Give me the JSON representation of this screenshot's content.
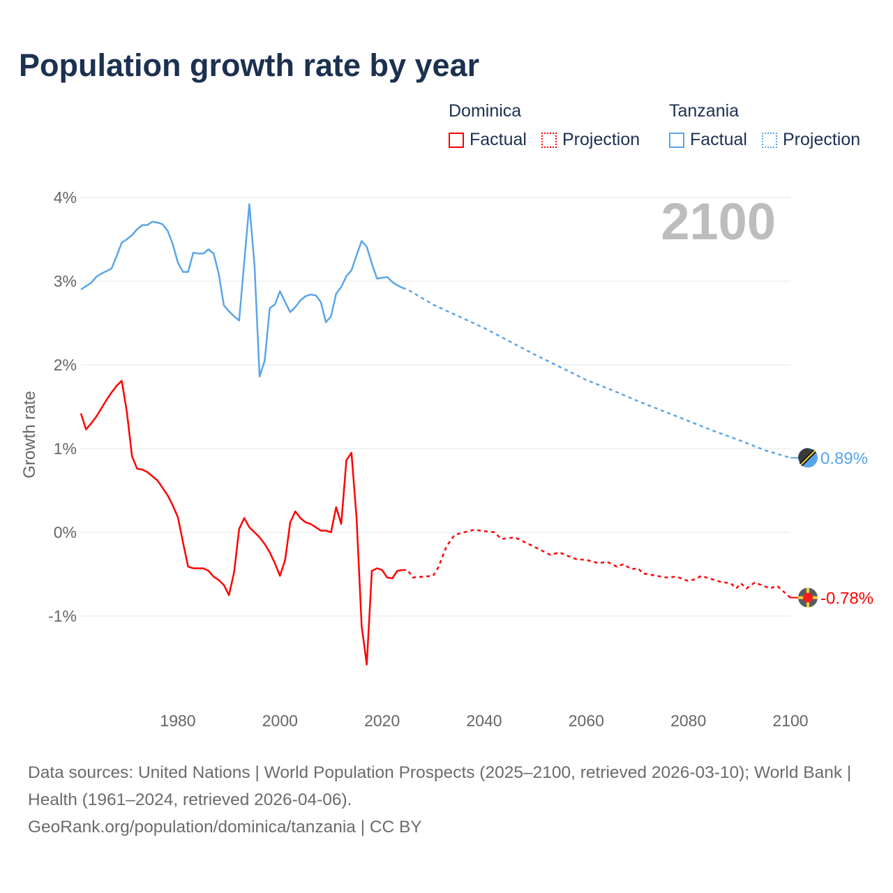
{
  "title": "Population growth rate by year",
  "legend": {
    "groups": [
      {
        "name": "Dominica",
        "color": "#ff0000",
        "factual": "Factual",
        "projection": "Projection"
      },
      {
        "name": "Tanzania",
        "color": "#5aa5ea",
        "factual": "Factual",
        "projection": "Projection"
      }
    ]
  },
  "year_overlay": "2100",
  "footer": {
    "sources": "Data sources: United Nations | World Population Prospects (2025–2100, retrieved 2026-03-10); World Bank | Health (1961–2024, retrieved 2026-04-06).",
    "link": "GeoRank.org/population/dominica/tanzania | CC BY"
  },
  "chart_data": {
    "type": "line",
    "title": "Population growth rate by year",
    "xlabel": "",
    "ylabel": "Growth rate",
    "xlim": [
      1961,
      2100
    ],
    "ylim": [
      -1.9,
      4.1
    ],
    "xticks": [
      "1980",
      "2000",
      "2020",
      "2040",
      "2060",
      "2080",
      "2100"
    ],
    "yticks": [
      "4%",
      "3%",
      "2%",
      "1%",
      "0%",
      "-1%"
    ],
    "grid": true,
    "series": [
      {
        "name": "Dominica",
        "color": "#ff0000",
        "end_label": "-0.78%",
        "factual": {
          "x": [
            1961,
            1962,
            1963,
            1964,
            1965,
            1966,
            1967,
            1968,
            1969,
            1970,
            1971,
            1972,
            1973,
            1974,
            1975,
            1976,
            1977,
            1978,
            1979,
            1980,
            1981,
            1982,
            1983,
            1984,
            1985,
            1986,
            1987,
            1988,
            1989,
            1990,
            1991,
            1992,
            1993,
            1994,
            1995,
            1996,
            1997,
            1998,
            1999,
            2000,
            2001,
            2002,
            2003,
            2004,
            2005,
            2006,
            2007,
            2008,
            2009,
            2010,
            2011,
            2012,
            2013,
            2014,
            2015,
            2016,
            2017,
            2018,
            2019,
            2020,
            2021,
            2022,
            2023,
            2024
          ],
          "y": [
            1.42,
            1.23,
            1.3,
            1.38,
            1.48,
            1.58,
            1.67,
            1.75,
            1.81,
            1.44,
            0.91,
            0.76,
            0.75,
            0.72,
            0.67,
            0.62,
            0.53,
            0.44,
            0.32,
            0.18,
            -0.12,
            -0.41,
            -0.43,
            -0.43,
            -0.43,
            -0.46,
            -0.53,
            -0.57,
            -0.63,
            -0.75,
            -0.48,
            0.04,
            0.17,
            0.06,
            0.0,
            -0.06,
            -0.14,
            -0.24,
            -0.37,
            -0.52,
            -0.33,
            0.12,
            0.25,
            0.17,
            0.12,
            0.1,
            0.06,
            0.02,
            0.02,
            0.0,
            0.3,
            0.1,
            0.86,
            0.95,
            0.17,
            -1.12,
            -1.58,
            -0.46,
            -0.43,
            -0.45,
            -0.54,
            -0.55,
            -0.46,
            -0.45
          ]
        },
        "projection": {
          "x": [
            2024,
            2025,
            2026,
            2030,
            2031,
            2032.6,
            2034.2,
            2038,
            2042,
            2043.4,
            2046,
            2049.4,
            2053,
            2054.7,
            2058,
            2060,
            2062.5,
            2064,
            2066,
            2067.3,
            2068.8,
            2070.2,
            2071,
            2075.7,
            2077.7,
            2079.9,
            2081.4,
            2082.5,
            2086.2,
            2088.3,
            2089.4,
            2090.3,
            2091.4,
            2093,
            2096,
            2097.4,
            2099.8,
            2100
          ],
          "y": [
            -0.45,
            -0.45,
            -0.54,
            -0.52,
            -0.42,
            -0.17,
            -0.03,
            0.03,
            0.0,
            -0.08,
            -0.06,
            -0.16,
            -0.27,
            -0.24,
            -0.32,
            -0.33,
            -0.37,
            -0.35,
            -0.41,
            -0.38,
            -0.44,
            -0.43,
            -0.49,
            -0.54,
            -0.53,
            -0.58,
            -0.56,
            -0.52,
            -0.59,
            -0.61,
            -0.67,
            -0.61,
            -0.67,
            -0.6,
            -0.67,
            -0.64,
            -0.77,
            -0.78
          ]
        }
      },
      {
        "name": "Tanzania",
        "color": "#5aa5ea",
        "end_label": "0.89%",
        "factual": {
          "x": [
            1961,
            1962,
            1963,
            1964,
            1965,
            1966,
            1967,
            1968,
            1969,
            1970,
            1971,
            1972,
            1973,
            1974,
            1975,
            1976,
            1977,
            1978,
            1979,
            1980,
            1981,
            1982,
            1983,
            1984,
            1985,
            1986,
            1987,
            1988,
            1989,
            1990,
            1991,
            1992,
            1993,
            1994,
            1995,
            1996,
            1997,
            1998,
            1999,
            2000,
            2001,
            2002,
            2003,
            2004,
            2005,
            2006,
            2007,
            2008,
            2009,
            2010,
            2011,
            2012,
            2013,
            2014,
            2015,
            2016,
            2017,
            2018,
            2019,
            2020,
            2021,
            2022,
            2023,
            2024
          ],
          "y": [
            2.9,
            2.94,
            2.98,
            3.05,
            3.09,
            3.12,
            3.15,
            3.3,
            3.46,
            3.5,
            3.55,
            3.62,
            3.67,
            3.67,
            3.71,
            3.7,
            3.68,
            3.6,
            3.44,
            3.22,
            3.11,
            3.11,
            3.34,
            3.33,
            3.33,
            3.38,
            3.33,
            3.09,
            2.71,
            2.64,
            2.58,
            2.53,
            3.23,
            3.92,
            3.19,
            1.86,
            2.05,
            2.68,
            2.72,
            2.88,
            2.75,
            2.63,
            2.69,
            2.77,
            2.82,
            2.84,
            2.83,
            2.75,
            2.51,
            2.58,
            2.85,
            2.93,
            3.06,
            3.13,
            3.31,
            3.48,
            3.41,
            3.21,
            3.03,
            3.04,
            3.05,
            2.99,
            2.95,
            2.92
          ]
        },
        "projection": {
          "x": [
            2024,
            2025,
            2030,
            2035,
            2040,
            2045,
            2050,
            2055,
            2060,
            2065,
            2070,
            2075,
            2080,
            2085,
            2090,
            2095,
            2100
          ],
          "y": [
            2.92,
            2.9,
            2.72,
            2.58,
            2.44,
            2.28,
            2.12,
            1.97,
            1.82,
            1.7,
            1.57,
            1.45,
            1.33,
            1.21,
            1.1,
            0.98,
            0.89
          ]
        }
      }
    ]
  }
}
